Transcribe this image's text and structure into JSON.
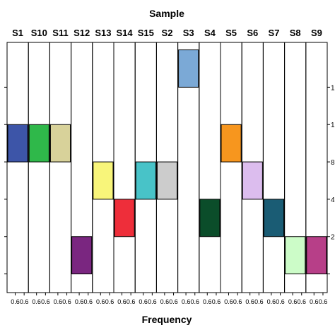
{
  "chart_data": {
    "type": "bar",
    "title": "Sample",
    "xlabel": "Frequency",
    "ylim": [
      -0.5,
      6.2
    ],
    "categories": [
      "S1",
      "S10",
      "S11",
      "S12",
      "S13",
      "S14",
      "S15",
      "S2",
      "S3",
      "S4",
      "S5",
      "S6",
      "S7",
      "S8",
      "S9"
    ],
    "bars": [
      {
        "sample": "S1",
        "ymin": 3,
        "ymax": 4,
        "color": "#3d55a8"
      },
      {
        "sample": "S10",
        "ymin": 3,
        "ymax": 4,
        "color": "#2fb84a"
      },
      {
        "sample": "S11",
        "ymin": 3,
        "ymax": 4,
        "color": "#d8d29a"
      },
      {
        "sample": "S12",
        "ymin": 0,
        "ymax": 1,
        "color": "#7a2680"
      },
      {
        "sample": "S13",
        "ymin": 2,
        "ymax": 3,
        "color": "#f8f57a"
      },
      {
        "sample": "S14",
        "ymin": 1,
        "ymax": 2,
        "color": "#ee2e3a"
      },
      {
        "sample": "S15",
        "ymin": 2,
        "ymax": 3,
        "color": "#48c3c8"
      },
      {
        "sample": "S2",
        "ymin": 2,
        "ymax": 3,
        "color": "#cccccc"
      },
      {
        "sample": "S3",
        "ymin": 5,
        "ymax": 6,
        "color": "#7ba9d6"
      },
      {
        "sample": "S4",
        "ymin": 1,
        "ymax": 2,
        "color": "#0b4d2a"
      },
      {
        "sample": "S5",
        "ymin": 3,
        "ymax": 4,
        "color": "#f7961e"
      },
      {
        "sample": "S6",
        "ymin": 2,
        "ymax": 3,
        "color": "#dcbdee"
      },
      {
        "sample": "S7",
        "ymin": 1,
        "ymax": 2,
        "color": "#1a5c74"
      },
      {
        "sample": "S8",
        "ymin": 0,
        "ymax": 1,
        "color": "#ccfcc8"
      },
      {
        "sample": "S9",
        "ymin": 0,
        "ymax": 1,
        "color": "#b73f88"
      }
    ],
    "y_tick_values": [
      0,
      1,
      2,
      3,
      4,
      5
    ],
    "y_tick_labels_left": [
      "",
      "",
      "",
      "",
      "",
      ""
    ],
    "y_tick_labels_right": [
      "",
      "2",
      "4",
      "8",
      "1",
      "1"
    ],
    "x_tick_labels": [
      "0.6",
      "0.6"
    ],
    "grid": false,
    "legend": "none"
  }
}
